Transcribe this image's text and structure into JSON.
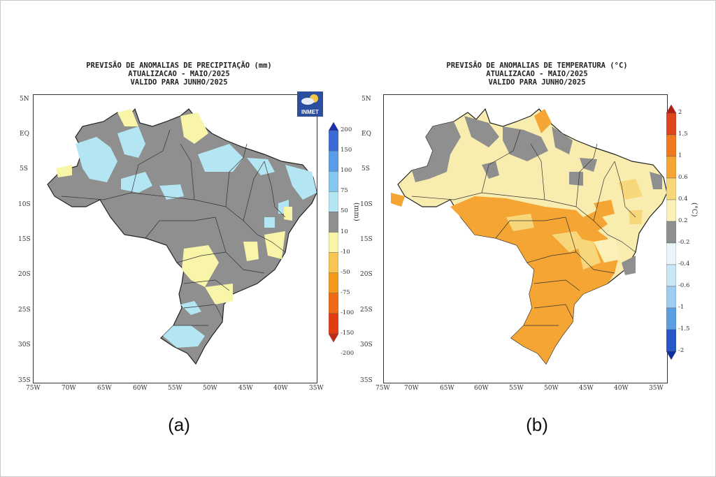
{
  "panels": [
    {
      "title": [
        "PREVISÃO DE ANOMALIAS DE PRECIPITAÇÃO (mm)",
        "ATUALIZACAO - MAIO/2025",
        "VALIDO PARA JUNHO/2025"
      ],
      "subcaption": "(a)",
      "unit": "(mm)",
      "logo": "INMET",
      "colorbar": {
        "labels": [
          "200",
          "150",
          "100",
          "75",
          "50",
          "10",
          "-10",
          "-50",
          "-75",
          "-100",
          "-150",
          "-200"
        ],
        "colors": [
          "#1b2fb0",
          "#3d6bd6",
          "#5b9ce6",
          "#86c7ee",
          "#b3e6f2",
          "#8f8f8f",
          "#f8f4a8",
          "#f6c552",
          "#f39a1e",
          "#ee6a15",
          "#e23d12",
          "#c42a10"
        ]
      }
    },
    {
      "title": [
        "PREVISÃO DE ANOMALIAS DE TEMPERATURA (°C)",
        "ATUALIZACAO - MAIO/2025",
        "VALIDO PARA JUNHO/2025"
      ],
      "subcaption": "(b)",
      "unit": "(°C)",
      "colorbar": {
        "labels": [
          "2",
          "1.5",
          "1",
          "0.6",
          "0.4",
          "0.2",
          "-0.2",
          "-0.4",
          "-0.6",
          "-1",
          "-1.5",
          "-2"
        ],
        "colors": [
          "#b51d12",
          "#e0441c",
          "#ef7a1f",
          "#f5a533",
          "#f8d77a",
          "#fbf1b8",
          "#8f8f8f",
          "#e9f5fb",
          "#c9e6f5",
          "#9fcdef",
          "#5a9de0",
          "#2756c8",
          "#102ea0"
        ]
      }
    }
  ],
  "axes": {
    "y_ticks": [
      "5N",
      "EQ",
      "5S",
      "10S",
      "15S",
      "20S",
      "25S",
      "30S",
      "35S"
    ],
    "x_ticks": [
      "75W",
      "70W",
      "65W",
      "60W",
      "55W",
      "50W",
      "45W",
      "40W",
      "35W"
    ]
  },
  "map_colors": {
    "grey": "#8f8f8f",
    "light_blue": "#b3e6f2",
    "light_yellow": "#f8f4a8",
    "orange": "#f5a533",
    "pale_orange": "#f8d77a"
  }
}
